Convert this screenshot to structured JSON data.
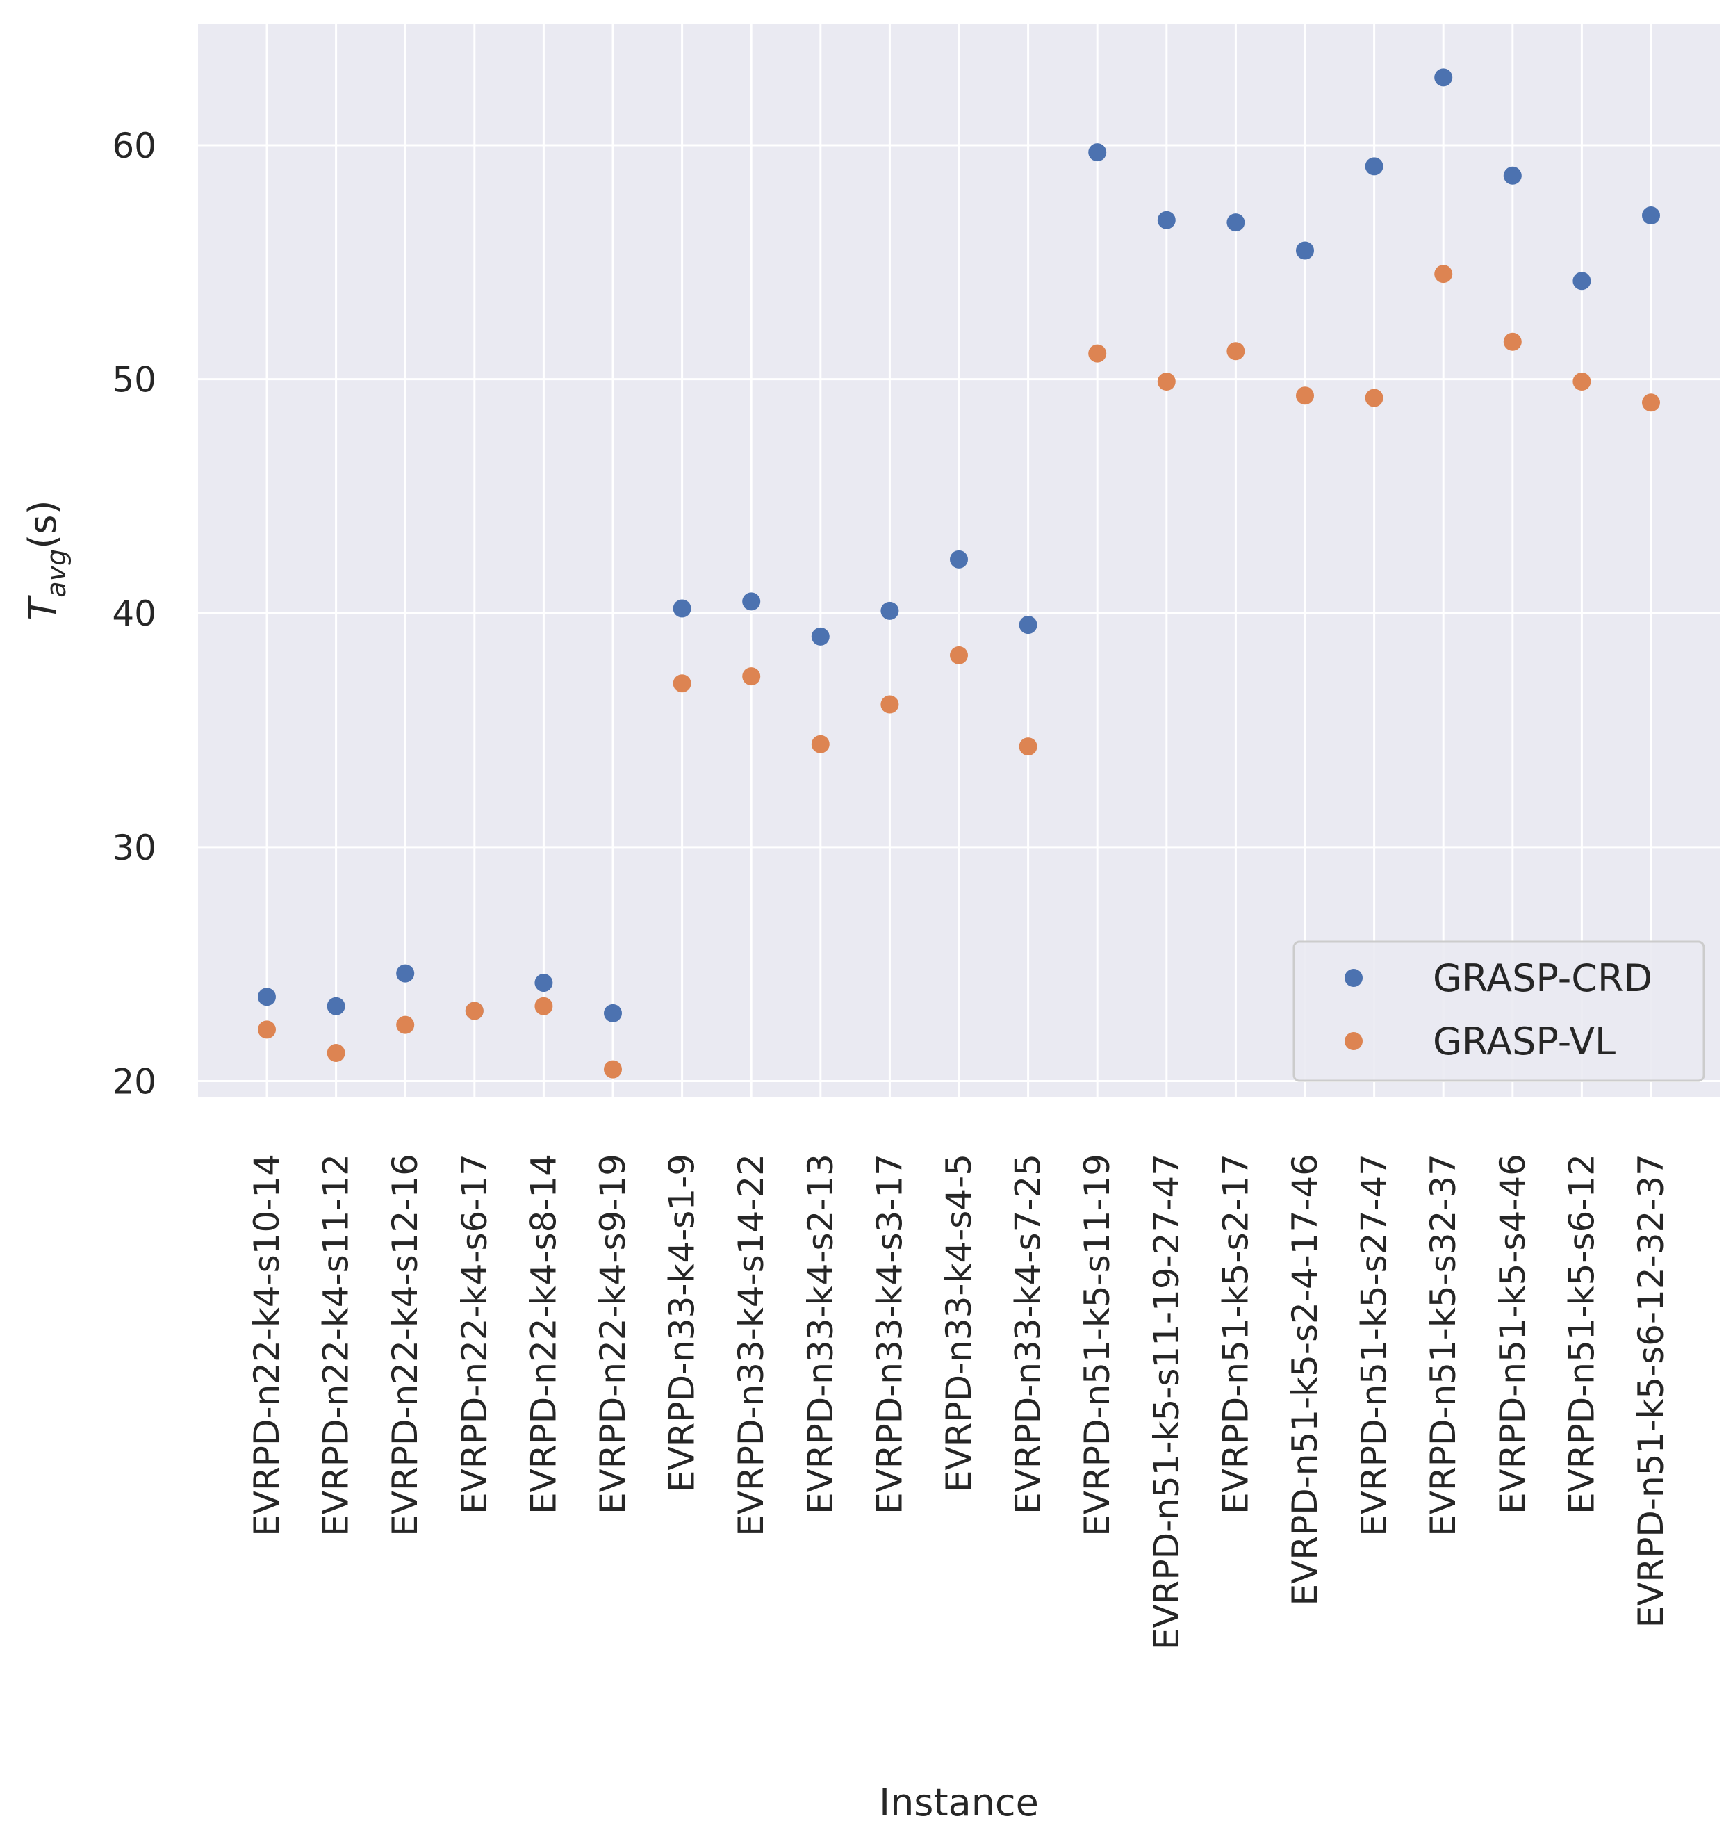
{
  "chart_data": {
    "type": "scatter",
    "title": "",
    "xlabel": "Instance",
    "ylabel": "T_avg(s)",
    "ylabel_main": "T",
    "ylabel_sub": "avg",
    "ylabel_suffix": "(s)",
    "ylim": [
      19.3,
      65.2
    ],
    "yticks": [
      20,
      30,
      40,
      50,
      60
    ],
    "ytick_labels": [
      "20",
      "30",
      "40",
      "50",
      "60"
    ],
    "grid": true,
    "legend_position": "lower-right",
    "categories": [
      "EVRPD-n22-k4-s10-14",
      "EVRPD-n22-k4-s11-12",
      "EVRPD-n22-k4-s12-16",
      "EVRPD-n22-k4-s6-17",
      "EVRPD-n22-k4-s8-14",
      "EVRPD-n22-k4-s9-19",
      "EVRPD-n33-k4-s1-9",
      "EVRPD-n33-k4-s14-22",
      "EVRPD-n33-k4-s2-13",
      "EVRPD-n33-k4-s3-17",
      "EVRPD-n33-k4-s4-5",
      "EVRPD-n33-k4-s7-25",
      "EVRPD-n51-k5-s11-19",
      "EVRPD-n51-k5-s11-19-27-47",
      "EVRPD-n51-k5-s2-17",
      "EVRPD-n51-k5-s2-4-17-46",
      "EVRPD-n51-k5-s27-47",
      "EVRPD-n51-k5-s32-37",
      "EVRPD-n51-k5-s4-46",
      "EVRPD-n51-k5-s6-12",
      "EVRPD-n51-k5-s6-12-32-37"
    ],
    "series": [
      {
        "name": "GRASP-CRD",
        "color": "#4c72b0",
        "values": [
          23.6,
          23.2,
          24.6,
          23.0,
          24.2,
          22.9,
          40.2,
          40.5,
          39.0,
          40.1,
          42.3,
          39.5,
          59.7,
          56.8,
          56.7,
          55.5,
          59.1,
          62.9,
          58.7,
          54.2,
          57.0
        ]
      },
      {
        "name": "GRASP-VL",
        "color": "#dd8452",
        "values": [
          22.2,
          21.2,
          22.4,
          23.0,
          23.2,
          20.5,
          37.0,
          37.3,
          34.4,
          36.1,
          38.2,
          34.3,
          51.1,
          49.9,
          51.2,
          49.3,
          49.2,
          54.5,
          51.6,
          49.9,
          49.0
        ]
      }
    ]
  }
}
